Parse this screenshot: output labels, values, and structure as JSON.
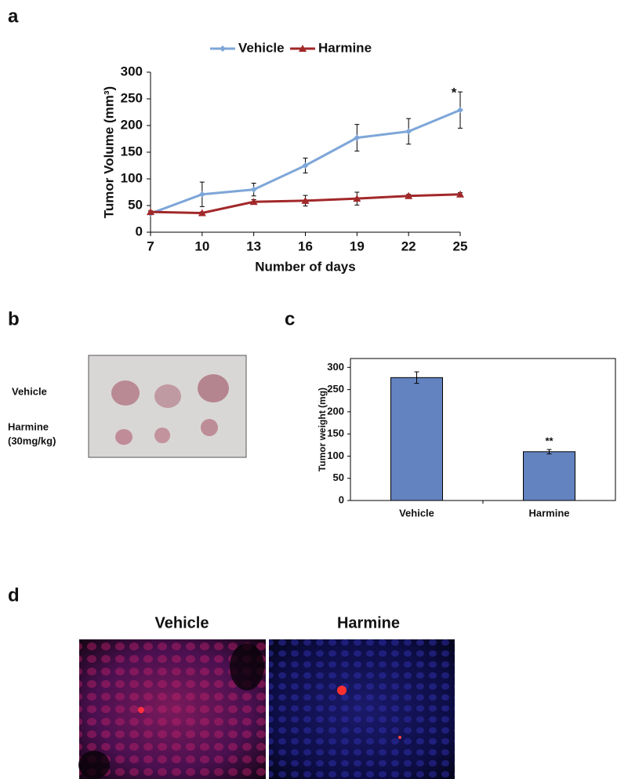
{
  "panel_labels": [
    "a",
    "b",
    "c",
    "d"
  ],
  "photo_labels": [
    "Vehicle",
    "Harmine",
    "(30mg/kg)"
  ],
  "staining_columns": [
    "Vehicle",
    "Harmine"
  ],
  "chart_data": [
    {
      "type": "line",
      "x_label": "Number of days",
      "y_label": "Tumor Volume (mm³)",
      "x": [
        7,
        10,
        13,
        16,
        19,
        22,
        25
      ],
      "series": [
        {
          "name": "Vehicle",
          "color": "#7ea6d8",
          "marker": "diamond",
          "values": [
            35,
            71,
            80,
            125,
            177,
            189,
            229
          ],
          "errors": [
            2,
            23,
            12,
            14,
            25,
            24,
            34
          ]
        },
        {
          "name": "Harmine",
          "color": "#a2282a",
          "marker": "triangle",
          "values": [
            38,
            36,
            57,
            59,
            63,
            68,
            71
          ],
          "errors": [
            2,
            2,
            4,
            10,
            12,
            3,
            3
          ]
        }
      ],
      "xlim": [
        7,
        25
      ],
      "xticks": [
        7,
        10,
        13,
        16,
        19,
        22,
        25
      ],
      "ylim": [
        0,
        300
      ],
      "yticks": [
        0,
        50,
        100,
        150,
        200,
        250,
        300
      ],
      "annotation": "*"
    },
    {
      "type": "bar",
      "y_label": "Tumor weight (mg)",
      "categories": [
        "Vehicle",
        "Harmine"
      ],
      "values": [
        277,
        110
      ],
      "errors": [
        13,
        5
      ],
      "color": "#6283c0",
      "ylim": [
        0,
        320
      ],
      "yticks": [
        0,
        50,
        100,
        150,
        200,
        250,
        300
      ],
      "annotation": "**"
    }
  ]
}
